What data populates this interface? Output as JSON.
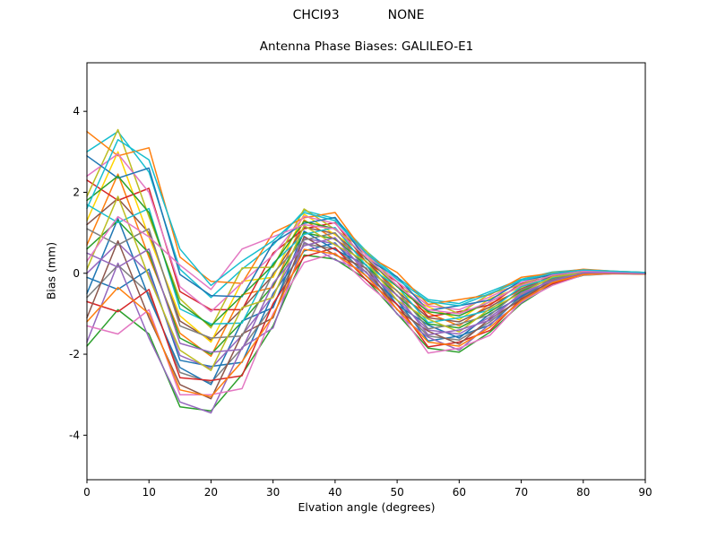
{
  "header": {
    "station_id": "CHCI93",
    "solution": "NONE"
  },
  "chart_data": {
    "type": "line",
    "title": "Antenna Phase Biases: GALILEO-E1",
    "xlabel": "Elvation angle (degrees)",
    "ylabel": "Bias (mm)",
    "xlim": [
      0,
      90
    ],
    "ylim": [
      -5.1,
      5.2
    ],
    "x_ticks": [
      0,
      10,
      20,
      30,
      40,
      50,
      60,
      70,
      80,
      90
    ],
    "y_ticks": [
      -4,
      -2,
      0,
      2,
      4
    ],
    "grid": false,
    "legend_position": "none",
    "x": [
      0,
      5,
      10,
      15,
      20,
      25,
      30,
      35,
      40,
      45,
      50,
      55,
      60,
      65,
      70,
      75,
      80,
      85,
      90
    ],
    "series": [
      {
        "name": "line-01",
        "color": "#17becf",
        "values": [
          3.0,
          3.5,
          2.5,
          0.1,
          -0.6,
          0.1,
          0.7,
          1.55,
          1.35,
          0.55,
          -0.1,
          -0.65,
          -0.75,
          -0.45,
          -0.15,
          0.03,
          0.09,
          0.05,
          0.02
        ]
      },
      {
        "name": "line-02",
        "color": "#1f77b4",
        "values": [
          -0.1,
          -0.4,
          0.1,
          -2.15,
          -2.3,
          -2.2,
          -0.5,
          0.55,
          0.75,
          -0.07,
          -0.66,
          -1.67,
          -1.55,
          -1.28,
          -0.55,
          -0.23,
          -0.01,
          0.01,
          -0.01
        ]
      },
      {
        "name": "line-03",
        "color": "#ff7f0e",
        "values": [
          0.7,
          2.45,
          0.4,
          -1.48,
          -2.05,
          -0.53,
          -0.35,
          1.32,
          0.83,
          0.39,
          -0.56,
          -0.98,
          -1.3,
          -0.75,
          -0.43,
          -0.05,
          0.03,
          0.03,
          0.01
        ]
      },
      {
        "name": "line-04",
        "color": "#2ca02c",
        "values": [
          -1.8,
          -0.9,
          -1.5,
          -3.3,
          -3.4,
          -2.5,
          -1.3,
          0.45,
          0.35,
          -0.15,
          -1.0,
          -1.85,
          -1.95,
          -1.45,
          -0.75,
          -0.27,
          -0.05,
          -0.01,
          -0.02
        ]
      },
      {
        "name": "line-05",
        "color": "#d62728",
        "values": [
          2.3,
          1.8,
          2.1,
          -0.45,
          -0.9,
          -0.9,
          0.5,
          1.1,
          1.25,
          0.28,
          -0.21,
          -1.07,
          -0.95,
          -0.78,
          -0.25,
          -0.08,
          0.07,
          0.04,
          0.01
        ]
      },
      {
        "name": "line-06",
        "color": "#9467bd",
        "values": [
          -1.7,
          0.25,
          -1.6,
          -3.18,
          -3.45,
          -1.83,
          -1.35,
          0.77,
          0.33,
          0.04,
          -1.01,
          -1.58,
          -1.9,
          -1.25,
          -0.73,
          -0.2,
          -0.04,
          0.0,
          -0.02
        ]
      },
      {
        "name": "line-07",
        "color": "#8c564b",
        "values": [
          1.2,
          1.85,
          1.0,
          -1.18,
          -1.65,
          -0.88,
          -0.05,
          1.14,
          0.98,
          0.29,
          -0.44,
          -1.1,
          -1.2,
          -0.83,
          -0.38,
          -0.08,
          0.04,
          0.03,
          0.01
        ]
      },
      {
        "name": "line-08",
        "color": "#e377c2",
        "values": [
          -1.3,
          -1.5,
          -0.9,
          -3.0,
          -3.0,
          -2.85,
          -1.0,
          0.27,
          0.5,
          -0.25,
          -0.88,
          -1.97,
          -1.85,
          -1.53,
          -0.7,
          -0.3,
          -0.04,
          -0.01,
          -0.02
        ]
      },
      {
        "name": "line-09",
        "color": "#bcbd22",
        "values": [
          1.9,
          3.55,
          1.4,
          -0.63,
          -1.35,
          0.13,
          0.15,
          1.59,
          1.08,
          0.56,
          -0.33,
          -0.68,
          -1.0,
          -0.5,
          -0.28,
          0.02,
          0.06,
          0.04,
          0.02
        ]
      },
      {
        "name": "line-10",
        "color": "#7f7f7f",
        "values": [
          -0.6,
          0.2,
          -0.5,
          -2.45,
          -2.7,
          -1.85,
          -0.8,
          0.73,
          0.6,
          0.03,
          -0.78,
          -1.55,
          -1.65,
          -1.2,
          -0.6,
          -0.2,
          -0.02,
          0.01,
          -0.01
        ]
      },
      {
        "name": "line-11",
        "color": "#ff7f0e",
        "values": [
          3.5,
          2.9,
          3.1,
          0.4,
          -0.2,
          -0.25,
          1.0,
          1.37,
          1.5,
          0.45,
          0.02,
          -0.77,
          -0.65,
          -0.53,
          -0.1,
          0.0,
          0.1,
          0.05,
          0.02
        ]
      },
      {
        "name": "line-12",
        "color": "#1f77b4",
        "values": [
          -0.5,
          1.35,
          -0.6,
          -2.33,
          -2.75,
          -1.18,
          -0.85,
          1.04,
          0.58,
          0.21,
          -0.78,
          -1.28,
          -1.6,
          -1.0,
          -0.58,
          -0.13,
          -0.01,
          0.01,
          -0.01
        ]
      },
      {
        "name": "line-13",
        "color": "#2ca02c",
        "values": [
          0.6,
          1.3,
          0.5,
          -1.6,
          -2.0,
          -1.2,
          -0.3,
          1.0,
          0.85,
          0.2,
          -0.55,
          -1.25,
          -1.35,
          -0.95,
          -0.45,
          -0.12,
          0.02,
          0.02,
          0.0
        ]
      },
      {
        "name": "line-14",
        "color": "#d62728",
        "values": [
          -0.7,
          -0.95,
          -0.4,
          -2.58,
          -2.65,
          -2.53,
          -0.75,
          0.41,
          0.63,
          -0.16,
          -0.77,
          -1.82,
          -1.7,
          -1.41,
          -0.63,
          -0.26,
          -0.02,
          0.0,
          -0.02
        ]
      },
      {
        "name": "line-15",
        "color": "#ffd400",
        "values": [
          1.3,
          3.0,
          0.9,
          -1.05,
          -1.7,
          -0.2,
          -0.1,
          1.46,
          0.95,
          0.48,
          -0.45,
          -0.83,
          -1.15,
          -0.62,
          -0.35,
          -0.02,
          0.05,
          0.04,
          0.01
        ]
      },
      {
        "name": "line-16",
        "color": "#9467bd",
        "values": [
          0.0,
          0.75,
          0.0,
          -2.03,
          -2.35,
          -1.53,
          -0.55,
          0.86,
          0.73,
          0.11,
          -0.66,
          -1.4,
          -1.5,
          -1.08,
          -0.53,
          -0.16,
          0.0,
          0.01,
          -0.01
        ]
      },
      {
        "name": "line-17",
        "color": "#17becf",
        "values": [
          1.7,
          1.25,
          1.6,
          -0.88,
          -1.25,
          -1.23,
          0.25,
          0.96,
          1.13,
          0.19,
          -0.32,
          -1.22,
          -1.1,
          -0.91,
          -0.33,
          -0.11,
          0.05,
          0.03,
          0.01
        ]
      },
      {
        "name": "line-18",
        "color": "#8c564b",
        "values": [
          -1.1,
          0.8,
          -1.1,
          -2.75,
          -3.1,
          -1.5,
          -1.1,
          0.91,
          0.45,
          0.13,
          -0.9,
          -1.43,
          -1.75,
          -1.12,
          -0.65,
          -0.17,
          -0.03,
          0.01,
          -0.01
        ]
      },
      {
        "name": "line-19",
        "color": "#e377c2",
        "values": [
          2.4,
          2.95,
          2.0,
          -0.33,
          -0.95,
          -0.23,
          0.45,
          1.41,
          1.23,
          0.46,
          -0.21,
          -0.8,
          -0.9,
          -0.58,
          -0.23,
          -0.01,
          0.07,
          0.04,
          0.02
        ]
      },
      {
        "name": "line-20",
        "color": "#7f7f7f",
        "values": [
          1.1,
          0.7,
          1.1,
          -1.3,
          -1.6,
          -1.55,
          0.0,
          0.82,
          1.0,
          0.1,
          -0.43,
          -1.37,
          -1.25,
          -1.03,
          -0.4,
          -0.15,
          0.03,
          0.02,
          0.0
        ]
      },
      {
        "name": "line-21",
        "color": "#bcbd22",
        "values": [
          0.1,
          1.9,
          -0.1,
          -1.9,
          -2.4,
          -0.85,
          -0.6,
          1.18,
          0.7,
          0.3,
          -0.67,
          -1.13,
          -1.45,
          -0.87,
          -0.5,
          -0.09,
          0.01,
          0.02,
          0.0
        ]
      },
      {
        "name": "line-22",
        "color": "#ff7f0e",
        "values": [
          -1.2,
          -0.35,
          -1.0,
          -2.88,
          -3.05,
          -2.18,
          -1.05,
          0.59,
          0.48,
          -0.06,
          -0.89,
          -1.7,
          -1.8,
          -1.33,
          -0.68,
          -0.23,
          -0.03,
          0.0,
          -0.02
        ]
      },
      {
        "name": "line-23",
        "color": "#1f77b4",
        "values": [
          2.9,
          2.35,
          2.6,
          -0.03,
          -0.55,
          -0.58,
          0.75,
          1.23,
          1.38,
          0.36,
          -0.09,
          -0.92,
          -0.8,
          -0.66,
          -0.18,
          -0.04,
          0.08,
          0.04,
          0.02
        ]
      },
      {
        "name": "line-24",
        "color": "#2ca02c",
        "values": [
          1.8,
          2.4,
          1.5,
          -0.75,
          -1.3,
          -0.55,
          0.2,
          1.28,
          1.1,
          0.38,
          -0.33,
          -0.95,
          -1.05,
          -0.7,
          -0.3,
          -0.05,
          0.06,
          0.04,
          0.01
        ]
      },
      {
        "name": "line-25",
        "color": "#9467bd",
        "values": [
          0.5,
          0.15,
          0.6,
          -1.73,
          -1.95,
          -1.88,
          -0.25,
          0.68,
          0.88,
          0.01,
          -0.54,
          -1.52,
          -1.4,
          -1.16,
          -0.48,
          -0.19,
          0.01,
          0.01,
          -0.01
        ]
      },
      {
        "name": "line-26",
        "color": "#e377c2",
        "values": [
          0.3,
          1.4,
          0.9,
          0.2,
          -0.4,
          0.6,
          0.9,
          1.2,
          1.1,
          0.4,
          -0.3,
          -0.9,
          -1.0,
          -0.7,
          -0.3,
          -0.05,
          0.05,
          0.03,
          0.01
        ]
      },
      {
        "name": "line-27",
        "color": "#17becf",
        "values": [
          1.6,
          3.3,
          2.8,
          0.6,
          -0.3,
          0.3,
          0.8,
          1.5,
          1.3,
          0.5,
          -0.15,
          -0.7,
          -0.8,
          -0.5,
          -0.18,
          0.0,
          0.08,
          0.05,
          0.02
        ]
      }
    ]
  }
}
